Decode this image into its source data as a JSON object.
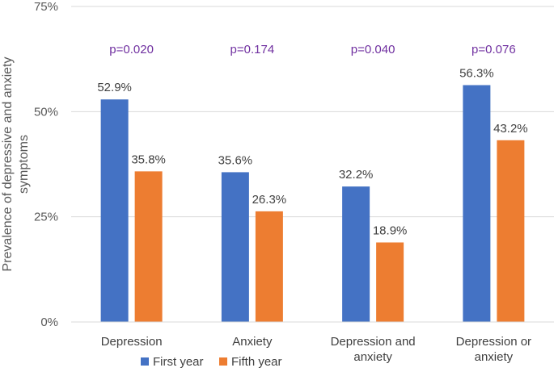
{
  "chart_data": {
    "type": "bar",
    "title": "",
    "ylabel_line1": "Prevalence of depressive and anxiety",
    "ylabel_line2": "symptoms",
    "xlabel": "",
    "ylim": [
      0,
      75
    ],
    "yticks": [
      {
        "value": 0,
        "label": "0%"
      },
      {
        "value": 25,
        "label": "25%"
      },
      {
        "value": 50,
        "label": "50%"
      },
      {
        "value": 75,
        "label": "75%"
      }
    ],
    "categories": [
      {
        "label_lines": [
          "Depression"
        ]
      },
      {
        "label_lines": [
          "Anxiety"
        ]
      },
      {
        "label_lines": [
          "Depression and",
          "anxiety"
        ]
      },
      {
        "label_lines": [
          "Depression or",
          "anxiety"
        ]
      }
    ],
    "series": [
      {
        "name": "First year",
        "color": "#4472c4",
        "values": [
          52.9,
          35.6,
          32.2,
          56.3
        ],
        "labels": [
          "52.9%",
          "35.6%",
          "32.2%",
          "56.3%"
        ]
      },
      {
        "name": "Fifth year",
        "color": "#ed7d31",
        "values": [
          35.8,
          26.3,
          18.9,
          43.2
        ],
        "labels": [
          "35.8%",
          "26.3%",
          "18.9%",
          "43.2%"
        ]
      }
    ],
    "annotations": [
      "p=0.020",
      "p=0.174",
      "p=0.040",
      "p=0.076"
    ],
    "annotation_color": "#7030a0",
    "gridlines": true,
    "legend_position": "bottom"
  }
}
